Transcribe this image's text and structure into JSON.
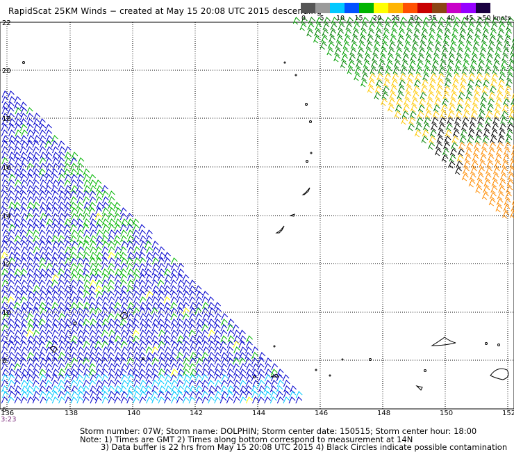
{
  "title": "RapidScat 25KM Winds − created at May 15 20:08 UTC 2015  descending",
  "color_scale": {
    "labels": [
      "0",
      "5",
      "10",
      "15",
      "20",
      "25",
      "30",
      "35",
      "40",
      "45",
      ">50 knots"
    ],
    "colors": [
      "#555555",
      "#9a9a9a",
      "#00c8ff",
      "#0050ff",
      "#00b400",
      "#ffff00",
      "#ffb400",
      "#ff5000",
      "#c80000",
      "#8b4513",
      "#c800c8",
      "#9600ff",
      "#1a0040"
    ]
  },
  "axes": {
    "lon_labels": [
      "136",
      "138",
      "140",
      "142",
      "144",
      "146",
      "148",
      "150",
      "152"
    ],
    "lat_labels": [
      "22",
      "20",
      "18",
      "16",
      "14",
      "12",
      "10",
      "8",
      "6"
    ]
  },
  "time_label": "3:23",
  "footer": {
    "line1": "Storm number: 07W;  Storm name: DOLPHIN;  Storm center date: 150515;  Storm center hour: 18:00",
    "line2": "Note: 1) Times are GMT  2) Times along bottom correspond to measurement at 14N",
    "line3": "3) Data buffer is 22 hrs from May 15 20:08 UTC 2015   4) Black Circles indicate possible contamination"
  }
}
